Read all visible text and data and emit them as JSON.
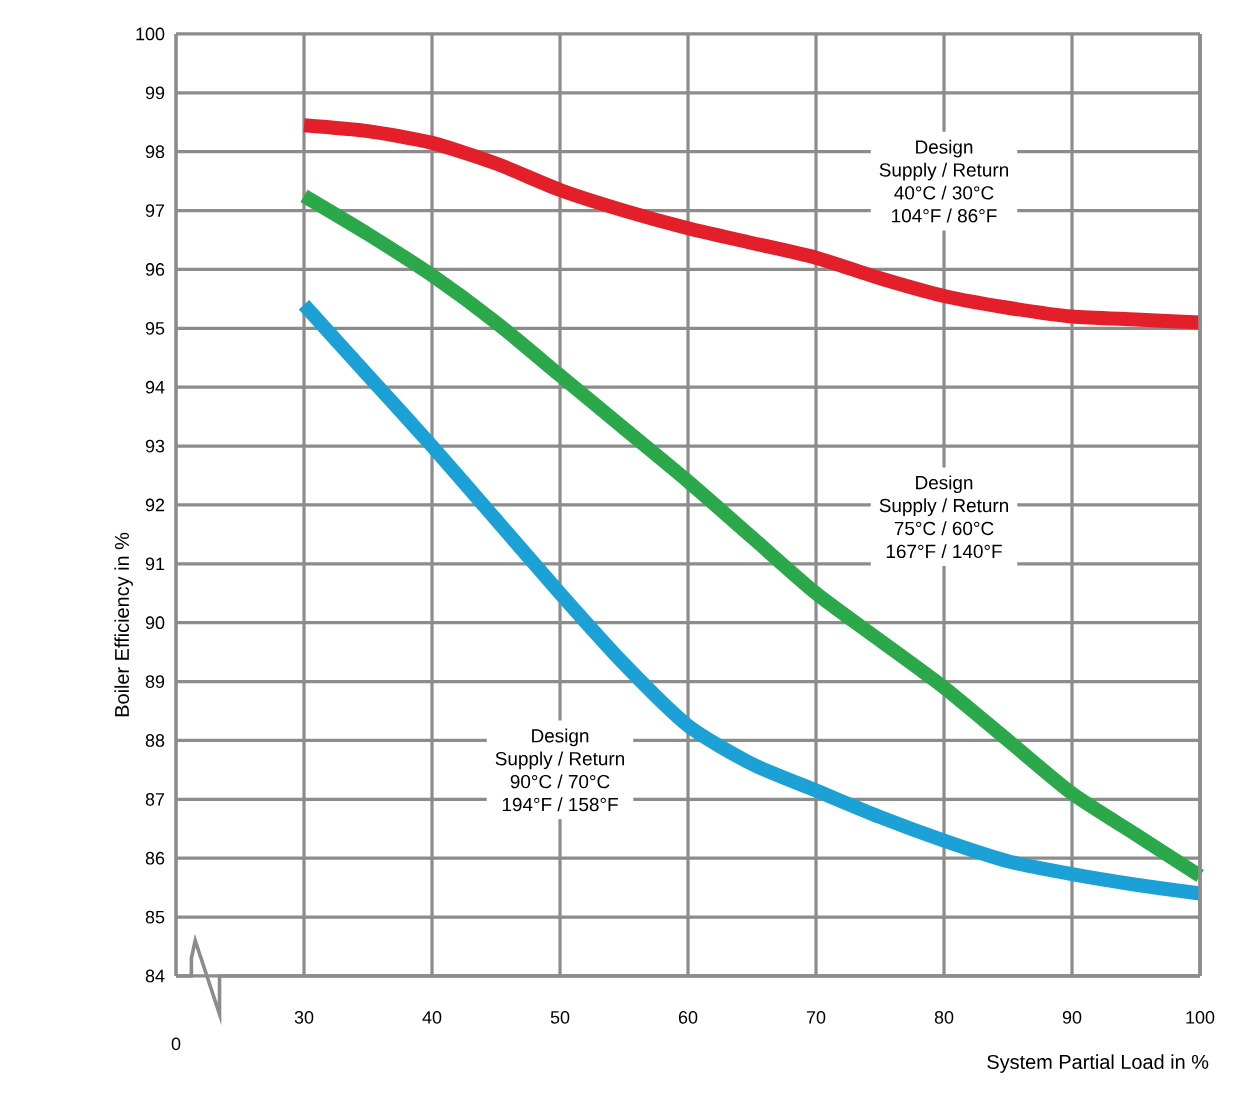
{
  "chart_data": {
    "type": "line",
    "xlabel": "System Partial Load in %",
    "ylabel": "Boiler Efficiency in %",
    "x": [
      30,
      35,
      40,
      45,
      50,
      55,
      60,
      65,
      70,
      75,
      80,
      85,
      90,
      95,
      100
    ],
    "series": [
      {
        "color": "#e3202a",
        "values": [
          98.45,
          98.35,
          98.15,
          97.8,
          97.35,
          97.0,
          96.7,
          96.45,
          96.2,
          95.85,
          95.55,
          95.35,
          95.2,
          95.15,
          95.1
        ]
      },
      {
        "color": "#2ba84a",
        "values": [
          97.25,
          96.6,
          95.9,
          95.1,
          94.2,
          93.3,
          92.4,
          91.45,
          90.5,
          89.7,
          88.9,
          88.0,
          87.1,
          86.4,
          85.7
        ]
      },
      {
        "color": "#1ba1d6",
        "values": [
          95.4,
          94.2,
          93.0,
          91.75,
          90.5,
          89.3,
          88.25,
          87.6,
          87.15,
          86.7,
          86.3,
          85.95,
          85.73,
          85.55,
          85.4
        ]
      }
    ],
    "xlim": [
      20,
      100
    ],
    "xticks": [
      30,
      40,
      50,
      60,
      70,
      80,
      90,
      100
    ],
    "ylim": [
      84,
      100
    ],
    "yticks": [
      84,
      85,
      86,
      87,
      88,
      89,
      90,
      91,
      92,
      93,
      94,
      95,
      96,
      97,
      98,
      99,
      100
    ],
    "grid": true,
    "legend": false,
    "marker": "none",
    "line_style": "solid",
    "annotations": [
      "Design",
      "Supply / Return",
      "40°C / 30°C",
      "104°F / 86°F",
      "Design",
      "Supply / Return",
      "75°C / 60°C",
      "167°F / 140°F",
      "Design",
      "Supply / Return",
      "90°C / 70°C",
      "194°F / 158°F",
      "0"
    ]
  }
}
